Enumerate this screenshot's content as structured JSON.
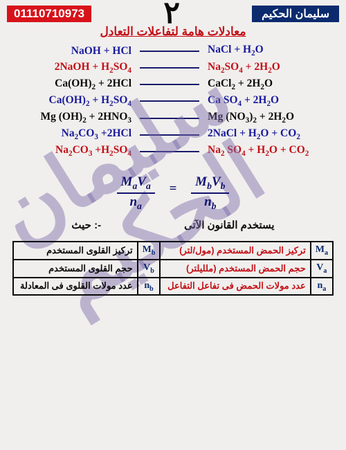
{
  "header": {
    "phone": "01110710973",
    "page_number": "٢",
    "author": "سليمان الحكيم"
  },
  "title": "معادلات هامة لتفاعلات التعادل",
  "colors": {
    "blue": "#1a1a9c",
    "red": "#c40f17",
    "black": "#0a0a0a",
    "navy": "#0b2b6e",
    "line": "#1a1a6c"
  },
  "equations": [
    {
      "lhs": "NaOH + HCl",
      "rhs": "NaCl + H₂O",
      "color": "blue"
    },
    {
      "lhs": "2NaOH + H₂SO₄",
      "rhs": "Na₂SO₄ + 2H₂O",
      "color": "red"
    },
    {
      "lhs": "Ca(OH)₂ + 2HCl",
      "rhs": "CaCl₂ + 2H₂O",
      "color": "black"
    },
    {
      "lhs": "Ca(OH)₂ + H₂SO₄",
      "rhs": "Ca SO₄ + 2H₂O",
      "color": "blue"
    },
    {
      "lhs": "Mg (OH)₂ + 2HNO₃",
      "rhs": "Mg (NO₃)₂ + 2H₂O",
      "color": "black"
    },
    {
      "lhs": "Na₂CO₃ +2HCl",
      "rhs": "2NaCl + H₂O + CO₂",
      "color": "blue"
    },
    {
      "lhs": "Na₂CO₃ +H₂SO₄",
      "rhs": "Na₂ SO₄ + H₂O + CO₂",
      "color": "red"
    }
  ],
  "formula": {
    "num_left": "MₐVₐ",
    "den_left": "nₐ",
    "num_right": "M_bV_b",
    "den_right": "n_b"
  },
  "law_line": {
    "left": "حيث :-",
    "right": "يستخدم القانون الآتى"
  },
  "table": {
    "rows": [
      {
        "symA": "Mₐ",
        "textA": "تركيز الحمض المستخدم (مول/لتر)",
        "colorA": "t-red",
        "symB": "M_b",
        "textB": "تركيز القلوى المستخدم",
        "colorB": "t-blk"
      },
      {
        "symA": "Vₐ",
        "textA": "حجم الحمض المستخدم (ملليلتر)",
        "colorA": "t-red",
        "symB": "V_b",
        "textB": "حجم القلوى المستخدم",
        "colorB": "t-blk"
      },
      {
        "symA": "nₐ",
        "textA": "عدد مولات الحمض فى تفاعل التفاعل",
        "colorA": "t-red",
        "symB": "n_b",
        "textB": "عدد مولات القلوى فى المعادلة",
        "colorB": "t-blk"
      }
    ]
  }
}
